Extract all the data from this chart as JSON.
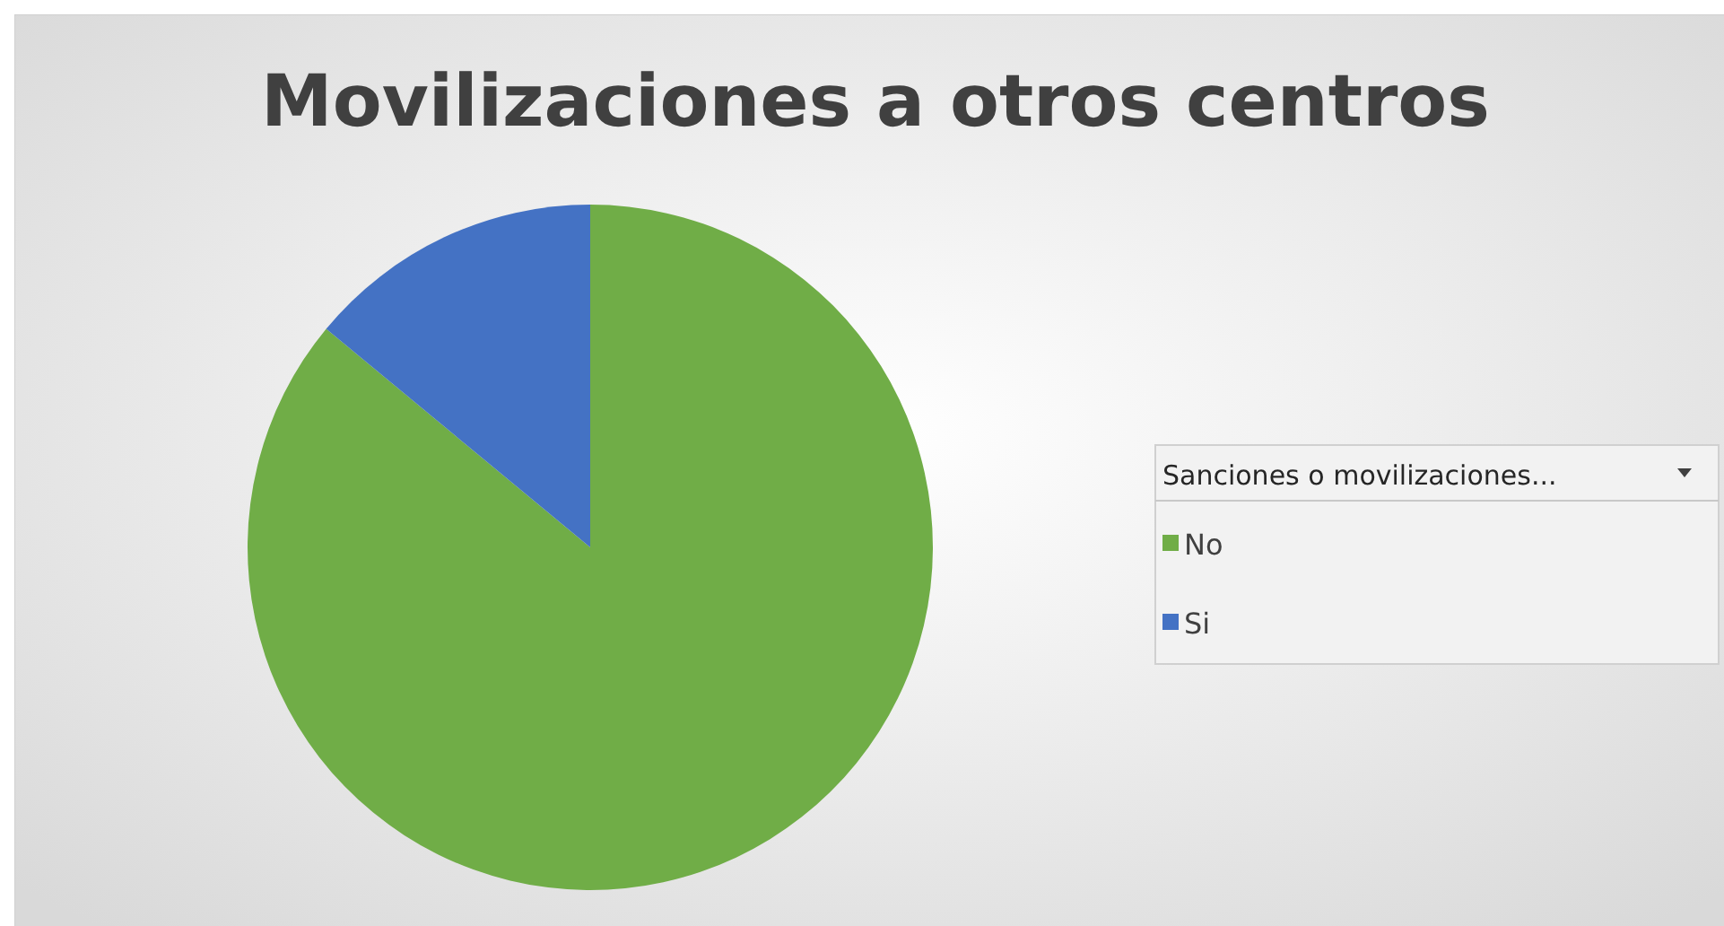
{
  "chart_data": {
    "type": "pie",
    "title": "Movilizaciones a otros centros",
    "legend_title": "Sanciones o movilizaciones...",
    "categories": [
      "No",
      "Si"
    ],
    "values": [
      86,
      14
    ],
    "colors": [
      "#70ad47",
      "#4472c4"
    ],
    "legend": "right"
  }
}
